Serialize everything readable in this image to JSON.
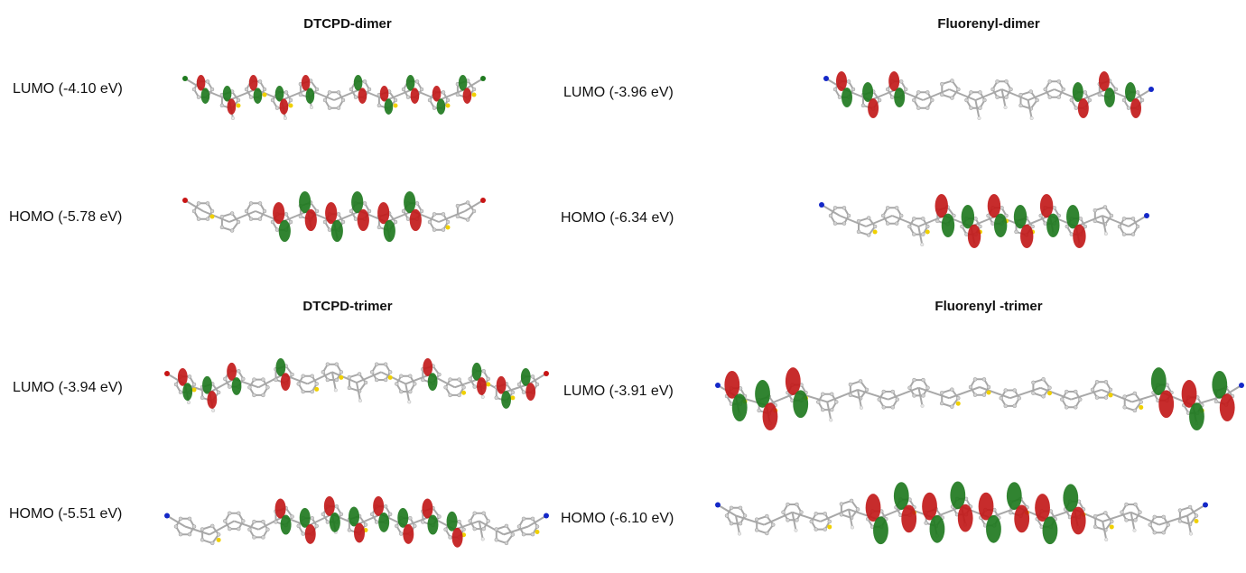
{
  "panels": {
    "dtcpd_dimer": {
      "title": "DTCPD-dimer",
      "lumo": "LUMO (-4.10 eV)",
      "homo": "HOMO (-5.78 eV)"
    },
    "fluorenyl_dimer": {
      "title": "Fluorenyl-dimer",
      "lumo": "LUMO (-3.96 eV)",
      "homo": "HOMO (-6.34 eV)"
    },
    "dtcpd_trimer": {
      "title": "DTCPD-trimer",
      "lumo": "LUMO (-3.94 eV)",
      "homo": "HOMO (-5.51 eV)"
    },
    "fluorenyl_trimer": {
      "title": "Fluorenyl -trimer",
      "lumo": "LUMO (-3.91 eV)",
      "homo": "HOMO (-6.10 eV)"
    }
  },
  "colors": {
    "lobe_positive": "#c21a1a",
    "lobe_negative": "#1f7a1f",
    "sulfur": "#f0d000",
    "nitrogen": "#1428c8",
    "oxygen": "#c81414"
  }
}
